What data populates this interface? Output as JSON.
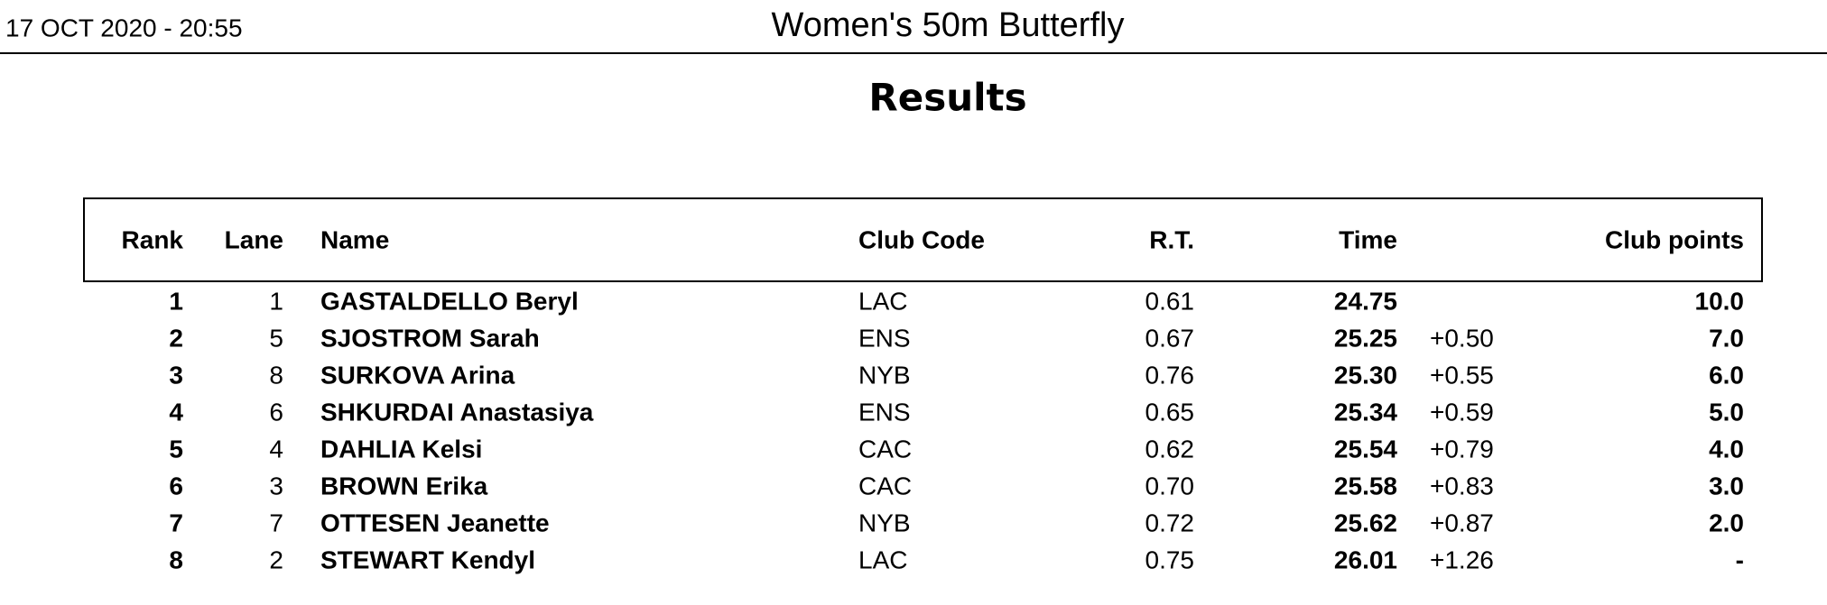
{
  "header": {
    "datetime": "17 OCT 2020 - 20:55",
    "title": "Women's 50m Butterfly",
    "subtitle": "Results"
  },
  "table": {
    "columns": {
      "rank": "Rank",
      "lane": "Lane",
      "name": "Name",
      "club": "Club Code",
      "rt": "R.T.",
      "time": "Time",
      "points": "Club points"
    },
    "rows": [
      {
        "rank": "1",
        "lane": "1",
        "name": "GASTALDELLO Beryl",
        "club": "LAC",
        "rt": "0.61",
        "time": "24.75",
        "points": "10.0"
      },
      {
        "rank": "2",
        "lane": "5",
        "name": "SJOSTROM Sarah",
        "club": "ENS",
        "rt": "0.67",
        "time": "25.25",
        "behind": "+0.50",
        "points": "7.0"
      },
      {
        "rank": "3",
        "lane": "8",
        "name": "SURKOVA Arina",
        "club": "NYB",
        "rt": "0.76",
        "time": "25.30",
        "behind": "+0.55",
        "points": "6.0"
      },
      {
        "rank": "4",
        "lane": "6",
        "name": "SHKURDAI Anastasiya",
        "club": "ENS",
        "rt": "0.65",
        "time": "25.34",
        "behind": "+0.59",
        "points": "5.0"
      },
      {
        "rank": "5",
        "lane": "4",
        "name": "DAHLIA Kelsi",
        "club": "CAC",
        "rt": "0.62",
        "time": "25.54",
        "behind": "+0.79",
        "points": "4.0"
      },
      {
        "rank": "6",
        "lane": "3",
        "name": "BROWN Erika",
        "club": "CAC",
        "rt": "0.70",
        "time": "25.58",
        "behind": "+0.83",
        "points": "3.0"
      },
      {
        "rank": "7",
        "lane": "7",
        "name": "OTTESEN Jeanette",
        "club": "NYB",
        "rt": "0.72",
        "time": "25.62",
        "behind": "+0.87",
        "points": "2.0"
      },
      {
        "rank": "8",
        "lane": "2",
        "name": "STEWART Kendyl",
        "club": "LAC",
        "rt": "0.75",
        "time": "26.01",
        "behind": "+1.26",
        "points": "-"
      }
    ]
  }
}
